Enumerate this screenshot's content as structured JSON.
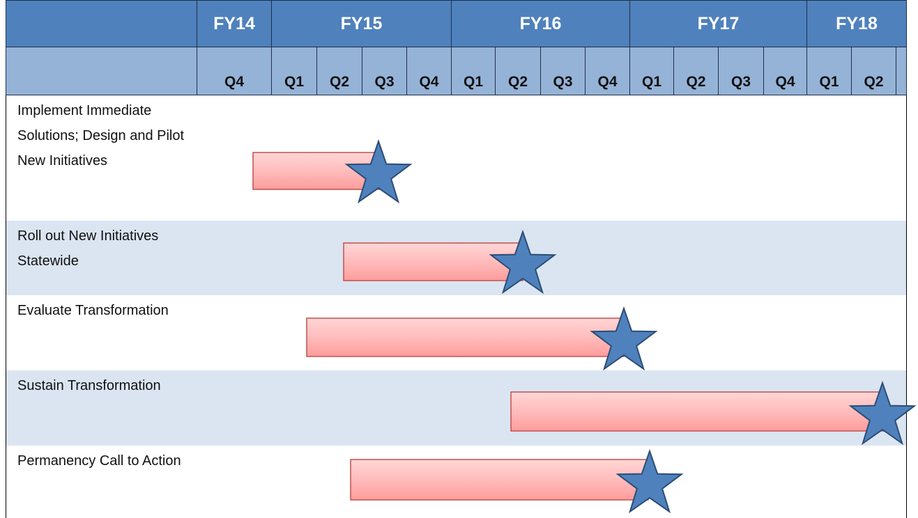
{
  "header": {
    "fiscal_years": [
      "FY14",
      "FY15",
      "FY16",
      "FY17",
      "FY18"
    ],
    "quarters": [
      "Q4",
      "Q1",
      "Q2",
      "Q3",
      "Q4",
      "Q1",
      "Q2",
      "Q3",
      "Q4",
      "Q1",
      "Q2",
      "Q3",
      "Q4",
      "Q1",
      "Q2"
    ]
  },
  "rows": [
    {
      "label": "Implement Immediate Solutions; Design and Pilot New Initiatives"
    },
    {
      "label": "Roll out New Initiatives Statewide"
    },
    {
      "label": "Evaluate Transformation"
    },
    {
      "label": "Sustain Transformation"
    },
    {
      "label": "Permanency Call to Action"
    }
  ]
}
